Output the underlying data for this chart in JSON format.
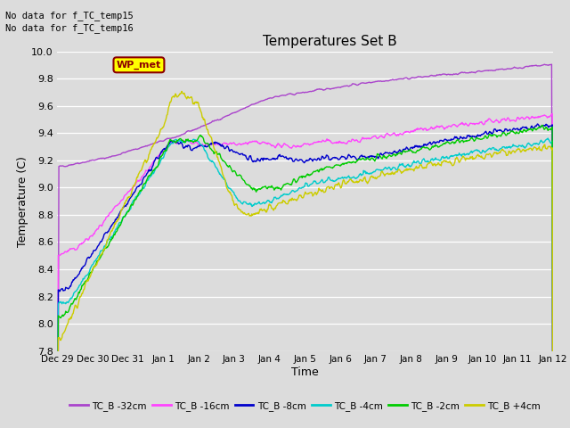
{
  "title": "Temperatures Set B",
  "xlabel": "Time",
  "ylabel": "Temperature (C)",
  "ylim": [
    7.8,
    10.0
  ],
  "no_data_text": [
    "No data for f_TC_temp15",
    "No data for f_TC_temp16"
  ],
  "wp_met_label": "WP_met",
  "background_color": "#dcdcdc",
  "plot_bg_color": "#dcdcdc",
  "legend_entries": [
    "TC_B -32cm",
    "TC_B -16cm",
    "TC_B -8cm",
    "TC_B -4cm",
    "TC_B -2cm",
    "TC_B +4cm"
  ],
  "legend_colors": [
    "#aa44cc",
    "#ff44ff",
    "#0000cc",
    "#00cccc",
    "#00cc00",
    "#cccc00"
  ],
  "line_colors": [
    "#aa44cc",
    "#ff44ff",
    "#0000cc",
    "#00cccc",
    "#00cc00",
    "#cccc00"
  ],
  "x_tick_labels": [
    "Dec 29",
    "Dec 30",
    "Dec 31",
    "Jan 1",
    "Jan 2",
    "Jan 3",
    "Jan 4",
    "Jan 5",
    "Jan 6",
    "Jan 7",
    "Jan 8",
    "Jan 9",
    "Jan 10",
    "Jan 11",
    "Jan 12"
  ],
  "num_points": 800
}
